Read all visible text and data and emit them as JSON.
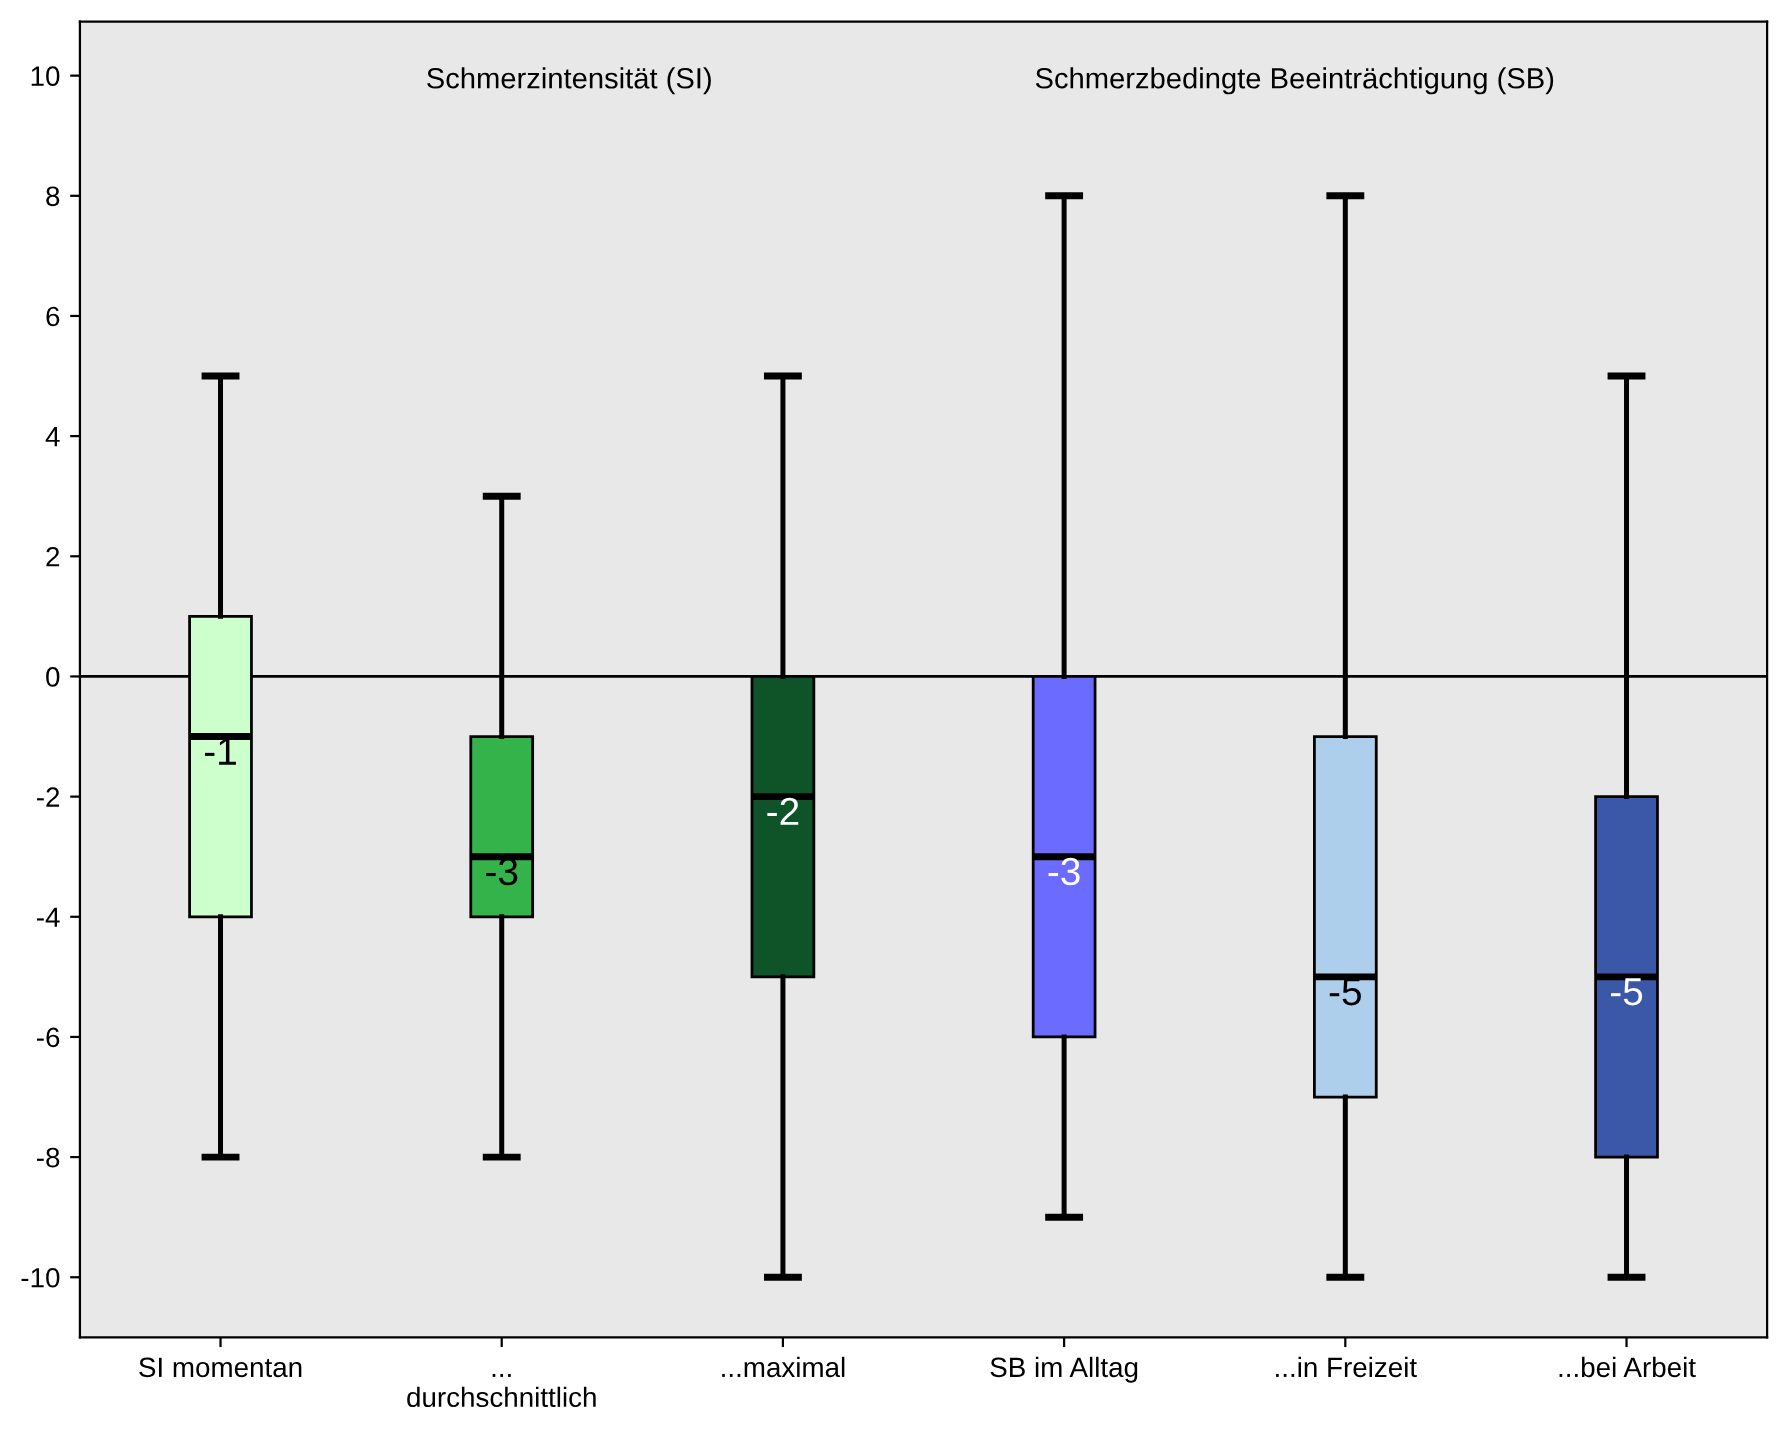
{
  "chart_data": {
    "type": "box",
    "categories": [
      "SI momentan",
      "...\ndurchschnittlich",
      "...maximal",
      "SB im Alltag",
      "...in Freizeit",
      "...bei Arbeit"
    ],
    "colors": [
      "#ccffcc",
      "#33b34a",
      "#0e5428",
      "#6b6bff",
      "#aecfec",
      "#3b58a8"
    ],
    "boxes": [
      {
        "low": -8,
        "q1": -4,
        "median": -1,
        "q3": 1,
        "high": 5
      },
      {
        "low": -8,
        "q1": -4,
        "median": -3,
        "q3": -1,
        "high": 3
      },
      {
        "low": -10,
        "q1": -5,
        "median": -2,
        "q3": 0,
        "high": 5
      },
      {
        "low": -9,
        "q1": -6,
        "median": -3,
        "q3": 0,
        "high": 8
      },
      {
        "low": -10,
        "q1": -7,
        "median": -5,
        "q3": -1,
        "high": 8
      },
      {
        "low": -10,
        "q1": -8,
        "median": -5,
        "q3": -2,
        "high": 5
      }
    ],
    "value_labels": [
      "-1",
      "-3",
      "-2",
      "-3",
      "-5",
      "-5"
    ],
    "ylim": [
      -11,
      10.9
    ],
    "yticks": [
      -10,
      -8,
      -6,
      -4,
      -2,
      0,
      2,
      4,
      6,
      8,
      10
    ],
    "ref_lines": [
      {
        "axis": "y",
        "value": 0,
        "color": "#000000"
      }
    ],
    "annotations": [
      "Schmerzintensität (SI)",
      "Schmerzbedingte Beeinträchtigung (SB)"
    ],
    "grid": false,
    "legend": false
  }
}
